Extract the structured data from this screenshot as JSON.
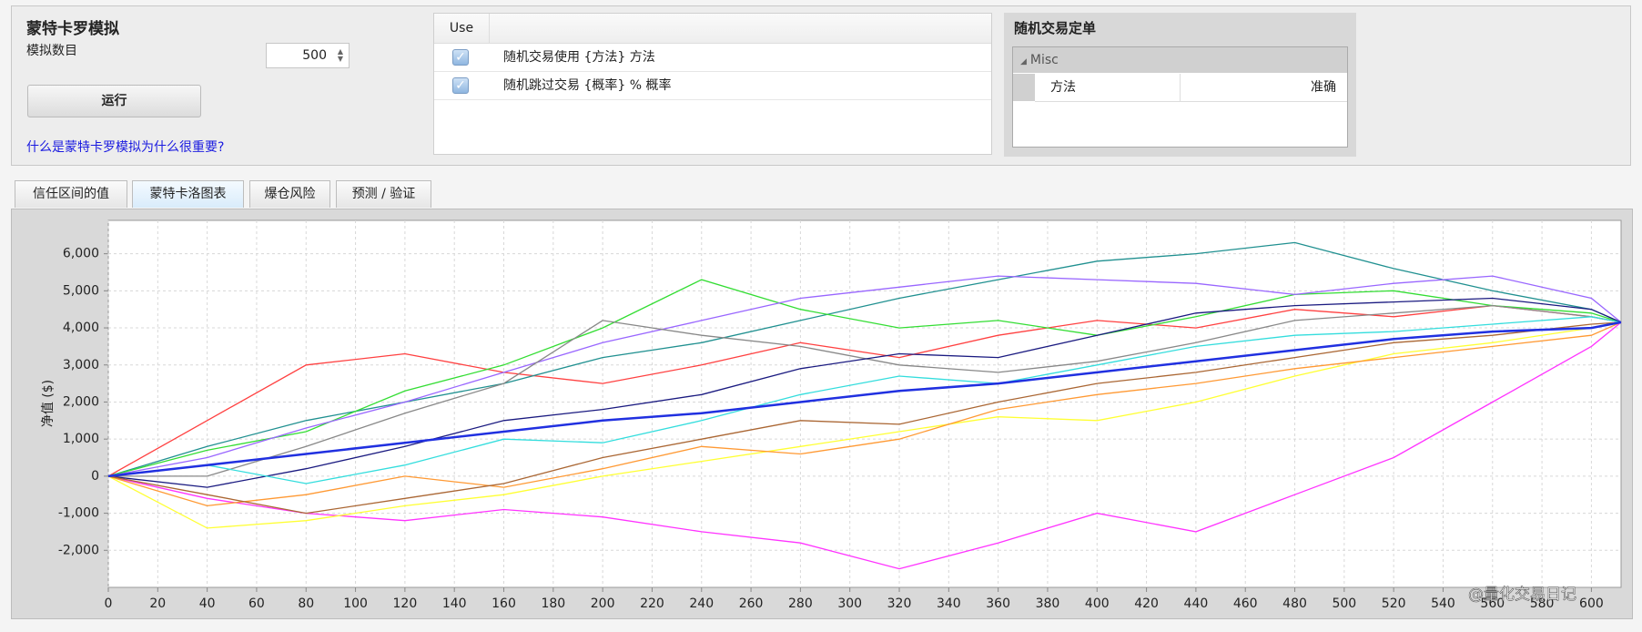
{
  "panel": {
    "title": "蒙特卡罗模拟",
    "count_label": "模拟数目",
    "count_value": 500,
    "run_button": "运行",
    "help_link": "什么是蒙特卡罗模拟为什么很重要?"
  },
  "table": {
    "header": "Use",
    "rows": [
      {
        "checked": true,
        "text": "随机交易使用 {方法} 方法"
      },
      {
        "checked": true,
        "text": "随机跳过交易 {概率} % 概率"
      }
    ]
  },
  "properties": {
    "title": "随机交易定单",
    "group": "Misc",
    "name": "方法",
    "value": "准确"
  },
  "tabs": {
    "items": [
      "信任区间的值",
      "蒙特卡洛图表",
      "爆仓风险",
      "预测 / 验证"
    ],
    "active": 1
  },
  "watermark": "@量化交易日记",
  "chart_data": {
    "type": "line",
    "ylabel": "净值 ($)",
    "x": [
      0,
      40,
      80,
      120,
      160,
      200,
      240,
      280,
      320,
      360,
      400,
      440,
      480,
      520,
      560,
      600,
      612
    ],
    "xlim": [
      0,
      612
    ],
    "xticks": [
      0,
      20,
      40,
      60,
      80,
      100,
      120,
      140,
      160,
      180,
      200,
      220,
      240,
      260,
      280,
      300,
      320,
      340,
      360,
      380,
      400,
      420,
      440,
      460,
      480,
      500,
      520,
      540,
      560,
      580,
      600
    ],
    "ylim": [
      -3000,
      6900
    ],
    "yticks": [
      {
        "value": -2000,
        "label": "-2,000"
      },
      {
        "value": -1000,
        "label": "-1,000"
      },
      0,
      {
        "value": 1000,
        "label": "1,000"
      },
      {
        "value": 2000,
        "label": "2,000"
      },
      {
        "value": 3000,
        "label": "3,000"
      },
      {
        "value": 4000,
        "label": "4,000"
      },
      {
        "value": 5000,
        "label": "5,000"
      },
      {
        "value": 6000,
        "label": "6,000"
      }
    ],
    "grid": true,
    "series": [
      {
        "color": "#ff4040",
        "values": [
          0,
          1500,
          3000,
          3300,
          2800,
          2500,
          3000,
          3600,
          3200,
          3800,
          4200,
          4000,
          4500,
          4300,
          4600,
          4300,
          4150
        ]
      },
      {
        "color": "#ff33ff",
        "values": [
          0,
          -600,
          -1000,
          -1200,
          -900,
          -1100,
          -1500,
          -1800,
          -2500,
          -1800,
          -1000,
          -1500,
          -500,
          500,
          2000,
          3500,
          4150
        ]
      },
      {
        "color": "#209090",
        "values": [
          0,
          800,
          1500,
          2000,
          2500,
          3200,
          3600,
          4200,
          4800,
          5300,
          5800,
          6000,
          6300,
          5600,
          5000,
          4500,
          4150
        ]
      },
      {
        "color": "#33dd33",
        "values": [
          0,
          700,
          1200,
          2300,
          3000,
          4000,
          5300,
          4500,
          4000,
          4200,
          3800,
          4300,
          4900,
          5000,
          4600,
          4400,
          4150
        ]
      },
      {
        "color": "#9966ff",
        "values": [
          0,
          500,
          1300,
          2000,
          2800,
          3600,
          4200,
          4800,
          5100,
          5400,
          5300,
          5200,
          4900,
          5200,
          5400,
          4800,
          4150
        ]
      },
      {
        "color": "#888888",
        "values": [
          0,
          0,
          800,
          1700,
          2500,
          4200,
          3800,
          3500,
          3000,
          2800,
          3100,
          3600,
          4200,
          4400,
          4600,
          4300,
          4150
        ]
      },
      {
        "color": "#1a1a80",
        "values": [
          0,
          -300,
          200,
          800,
          1500,
          1800,
          2200,
          2900,
          3300,
          3200,
          3800,
          4400,
          4600,
          4700,
          4800,
          4500,
          4150
        ]
      },
      {
        "color": "#ffff33",
        "values": [
          0,
          -1400,
          -1200,
          -800,
          -500,
          0,
          400,
          800,
          1200,
          1600,
          1500,
          2000,
          2700,
          3300,
          3600,
          4000,
          4150
        ]
      },
      {
        "color": "#ff9933",
        "values": [
          0,
          -800,
          -500,
          0,
          -300,
          200,
          800,
          600,
          1000,
          1800,
          2200,
          2500,
          2900,
          3200,
          3500,
          3800,
          4150
        ]
      },
      {
        "color": "#33dddd",
        "values": [
          0,
          300,
          -200,
          300,
          1000,
          900,
          1500,
          2200,
          2700,
          2500,
          3000,
          3500,
          3800,
          3900,
          4100,
          4300,
          4150
        ]
      },
      {
        "color": "#aa6633",
        "values": [
          0,
          -500,
          -1000,
          -600,
          -200,
          500,
          1000,
          1500,
          1400,
          2000,
          2500,
          2800,
          3200,
          3600,
          3800,
          4100,
          4150
        ]
      },
      {
        "color": "#2030e0",
        "values": [
          0,
          300,
          600,
          900,
          1200,
          1500,
          1700,
          2000,
          2300,
          2500,
          2800,
          3100,
          3400,
          3700,
          3900,
          4000,
          4150
        ]
      }
    ]
  }
}
